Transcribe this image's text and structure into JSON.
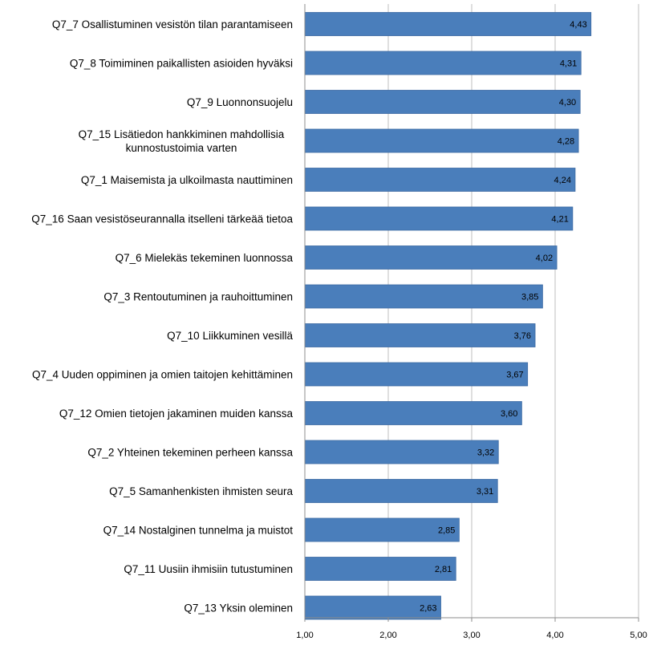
{
  "chart_data": {
    "type": "bar",
    "orientation": "horizontal",
    "categories": [
      [
        "Q7_7 Osallistuminen vesistön tilan parantamiseen"
      ],
      [
        "Q7_8 Toimiminen paikallisten asioiden hyväksi"
      ],
      [
        "Q7_9 Luonnonsuojelu"
      ],
      [
        "Q7_15 Lisätiedon hankkiminen mahdollisia",
        "kunnostustoimia varten"
      ],
      [
        "Q7_1 Maisemista ja ulkoilmasta nauttiminen"
      ],
      [
        "Q7_16 Saan vesistöseurannalla itselleni tärkeää tietoa"
      ],
      [
        "Q7_6 Mielekäs tekeminen luonnossa"
      ],
      [
        "Q7_3 Rentoutuminen ja rauhoittuminen"
      ],
      [
        "Q7_10 Liikkuminen vesillä"
      ],
      [
        "Q7_4 Uuden oppiminen ja omien taitojen kehittäminen"
      ],
      [
        "Q7_12 Omien tietojen jakaminen muiden kanssa"
      ],
      [
        "Q7_2 Yhteinen tekeminen perheen kanssa"
      ],
      [
        "Q7_5 Samanhenkisten ihmisten seura"
      ],
      [
        "Q7_14 Nostalginen tunnelma ja muistot"
      ],
      [
        "Q7_11 Uusiin ihmisiin tutustuminen"
      ],
      [
        "Q7_13 Yksin oleminen"
      ]
    ],
    "values": [
      4.43,
      4.31,
      4.3,
      4.28,
      4.24,
      4.21,
      4.02,
      3.85,
      3.76,
      3.67,
      3.6,
      3.32,
      3.31,
      2.85,
      2.81,
      2.63
    ],
    "data_labels": [
      "4,43",
      "4,31",
      "4,30",
      "4,28",
      "4,24",
      "4,21",
      "4,02",
      "3,85",
      "3,76",
      "3,67",
      "3,60",
      "3,32",
      "3,31",
      "2,85",
      "2,81",
      "2,63"
    ],
    "xlim": [
      1,
      5
    ],
    "x_ticks": [
      1,
      2,
      3,
      4,
      5
    ],
    "x_tick_labels": [
      "1,00",
      "2,00",
      "3,00",
      "4,00",
      "5,00"
    ],
    "grid": "vertical",
    "legend": "none",
    "colors": {
      "bar": "#4a7ebb",
      "bar_edge": "#3c6aa3",
      "grid": "#bfbfbf",
      "axis": "#8c8c8c"
    }
  }
}
